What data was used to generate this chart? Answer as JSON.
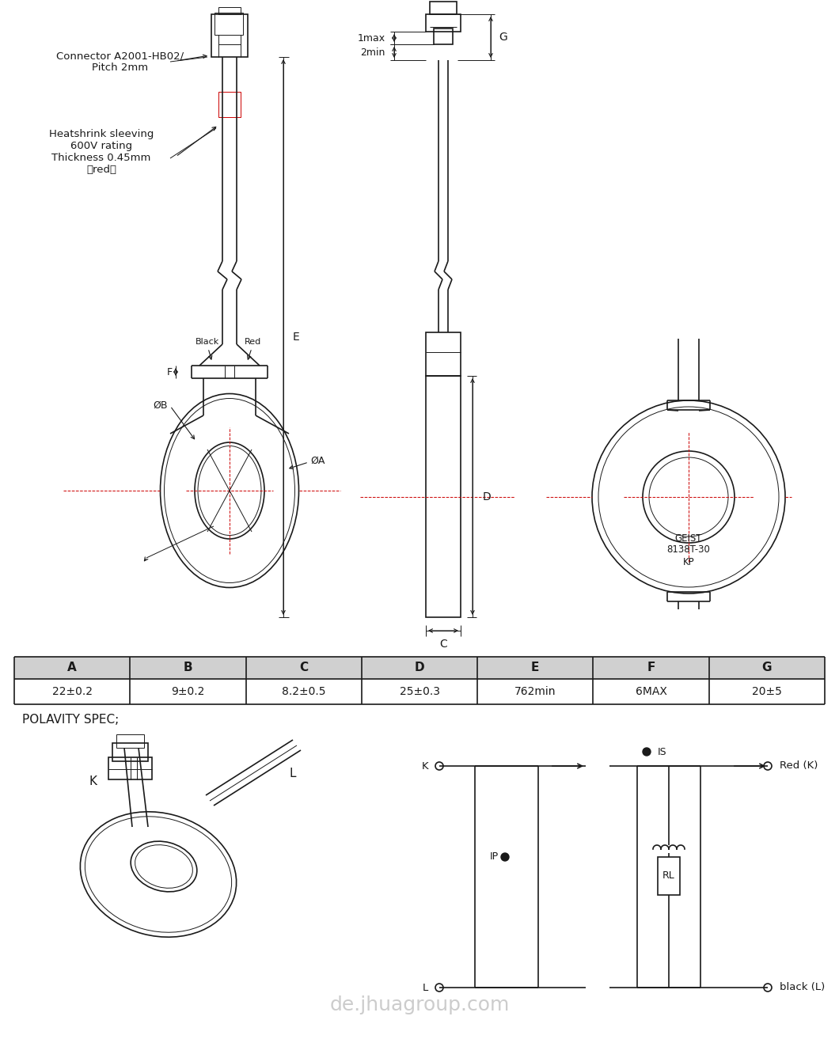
{
  "bg_color": "#ffffff",
  "line_color": "#1a1a1a",
  "red_line_color": "#cc0000",
  "table_header_bg": "#d0d0d0",
  "table_cols": [
    "A",
    "B",
    "C",
    "D",
    "E",
    "F",
    "G"
  ],
  "table_vals": [
    "22±0.2",
    "9±0.2",
    "8.2±0.5",
    "25±0.3",
    "762min",
    "6MAX",
    "20±5"
  ],
  "label_connector": "Connector A2001-HB02/\nPitch 2mm",
  "label_heatshrink": "Heatshrink sleeving\n600V rating\nThickness 0.45mm\n（red）",
  "label_black": "Black",
  "label_red": "Red",
  "label_phiB": "ØB",
  "label_phiA": "ØA",
  "label_F": "F",
  "label_E": "E",
  "label_D": "D",
  "label_C": "C",
  "label_G": "G",
  "label_1max": "1max",
  "label_2min": "2min",
  "label_geist": "GEIST\n8138T-30\nKP",
  "label_polarity": "POLAVITY SPEC;",
  "label_K": "K",
  "label_L": "L",
  "label_Ko": "K",
  "label_Lo": "L",
  "label_IP": "IP",
  "label_IS": "IS",
  "label_RL": "RL",
  "label_RedK": "Red (K)",
  "label_blackL": "black (L)",
  "watermark": "de.jhuagroup.com"
}
